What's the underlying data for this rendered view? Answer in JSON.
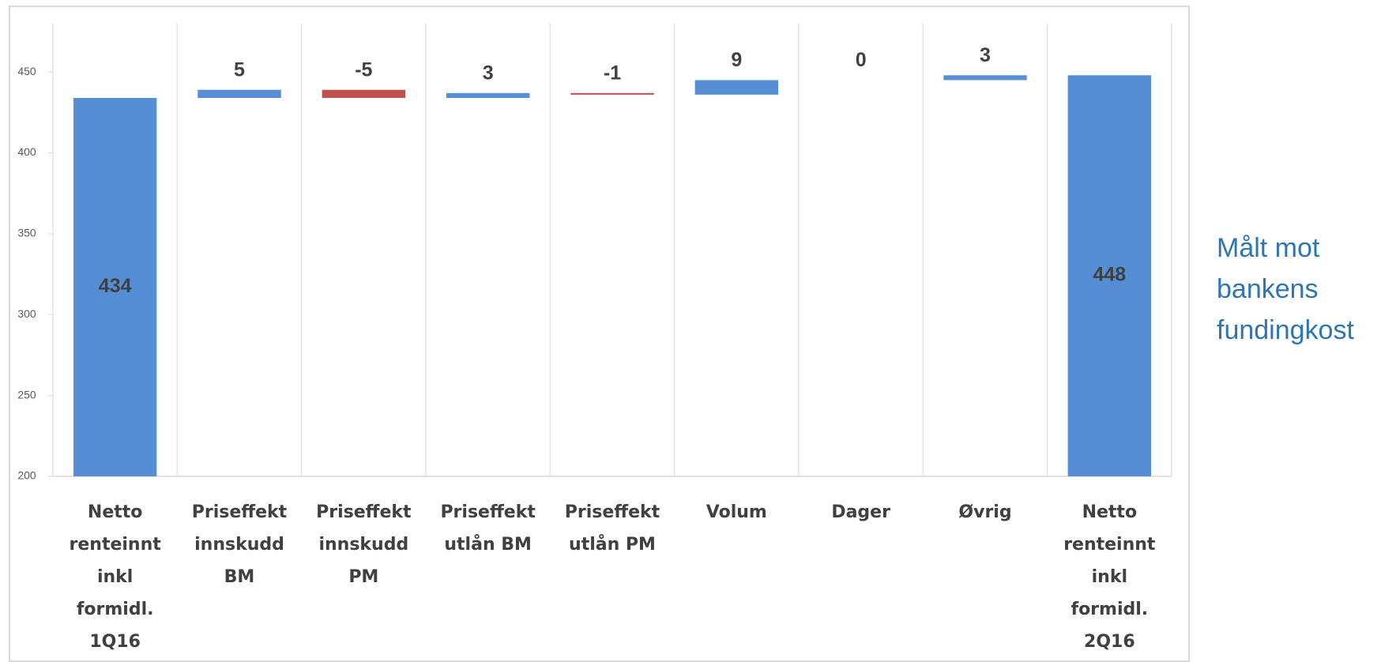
{
  "chart_data": {
    "type": "waterfall",
    "categories": [
      "Netto renteinnt inkl formidl. 1Q16",
      "Priseffekt innskudd BM",
      "Priseffekt innskudd PM",
      "Priseffekt utlån BM",
      "Priseffekt utlån PM",
      "Volum",
      "Dager",
      "Øvrig",
      "Netto renteinnt inkl formidl. 2Q16"
    ],
    "values": [
      434,
      5,
      -5,
      3,
      -1,
      9,
      0,
      3,
      448
    ],
    "measure": [
      "total",
      "relative",
      "relative",
      "relative",
      "relative",
      "relative",
      "relative",
      "relative",
      "total"
    ],
    "total_color": "#558ed5",
    "increase_color": "#558ed5",
    "decrease_color": "#c0504d",
    "ylim": [
      200,
      475
    ],
    "yticks": [
      200,
      250,
      300,
      350,
      400,
      450
    ],
    "grid": true,
    "annotation": "Målt mot bankens fundingkost"
  }
}
